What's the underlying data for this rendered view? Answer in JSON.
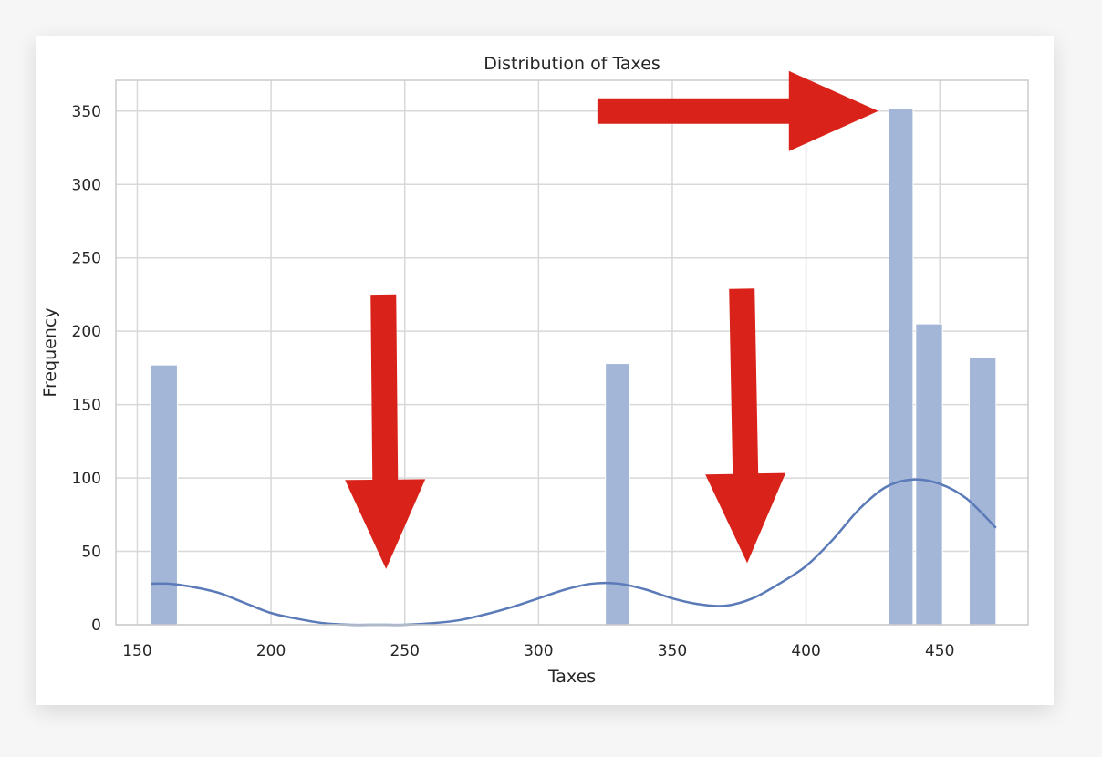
{
  "chart_data": {
    "type": "bar",
    "title": "Distribution of Taxes",
    "xlabel": "Taxes",
    "ylabel": "Frequency",
    "xlim": [
      142,
      483
    ],
    "ylim": [
      0,
      371
    ],
    "xticks": [
      150,
      200,
      250,
      300,
      350,
      400,
      450
    ],
    "yticks": [
      0,
      50,
      100,
      150,
      200,
      250,
      300,
      350
    ],
    "grid": true,
    "bins": [
      {
        "x0": 155,
        "x1": 165,
        "value": 177
      },
      {
        "x0": 325,
        "x1": 334,
        "value": 178
      },
      {
        "x0": 431,
        "x1": 440,
        "value": 352
      },
      {
        "x0": 441,
        "x1": 451,
        "value": 205
      },
      {
        "x0": 461,
        "x1": 471,
        "value": 182
      }
    ],
    "kde": {
      "x": [
        155,
        162,
        170,
        180,
        190,
        200,
        210,
        220,
        230,
        240,
        250,
        260,
        270,
        280,
        290,
        300,
        310,
        320,
        330,
        340,
        350,
        360,
        370,
        380,
        390,
        400,
        410,
        420,
        430,
        440,
        450,
        460,
        471
      ],
      "y": [
        28,
        28,
        26,
        22,
        15,
        8,
        4,
        1,
        0,
        0,
        0,
        1,
        3,
        7,
        12,
        18,
        24,
        28,
        28,
        24,
        18,
        14,
        13,
        18,
        28,
        40,
        58,
        79,
        94,
        99,
        96,
        86,
        66
      ]
    },
    "colors": {
      "bar": "#a3b6d8",
      "line": "#5a7ab8",
      "grid": "#d8d8d8",
      "arrow": "#d9231a"
    }
  },
  "annotations": {
    "arrows": [
      {
        "from": [
          322,
          350
        ],
        "to": [
          427,
          350
        ]
      },
      {
        "from": [
          242,
          225
        ],
        "to": [
          243,
          38
        ]
      },
      {
        "from": [
          376,
          229
        ],
        "to": [
          378,
          42
        ]
      }
    ]
  }
}
